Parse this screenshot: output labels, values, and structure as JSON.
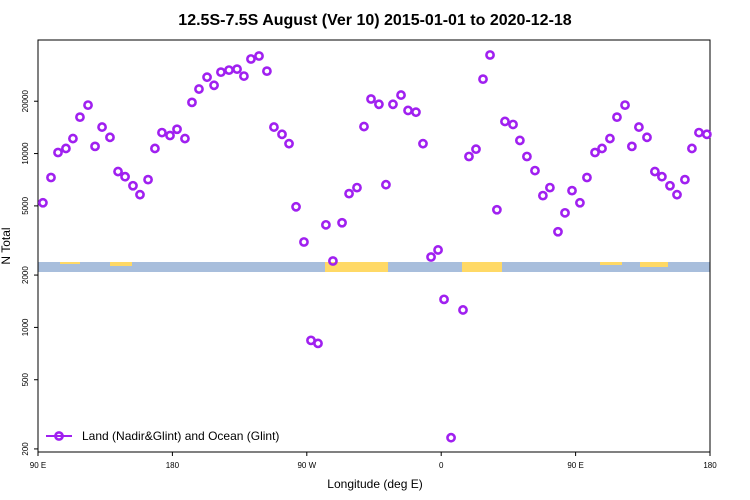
{
  "chart_data": {
    "type": "scatter",
    "title": "12.5S-7.5S August (Ver 10)   2015-01-01 to 2020-12-18",
    "x_label": "Longitude (deg E)",
    "y_label": "N Total",
    "log_y": true,
    "legend": "bottom-left",
    "xlim": [
      90,
      540
    ],
    "xticks": [
      {
        "value": 90,
        "label": "90 E"
      },
      180,
      {
        "value": 270,
        "label": "90 W"
      },
      {
        "value": 360,
        "label": "0"
      },
      {
        "value": 450,
        "label": "90 E"
      },
      {
        "value": 540,
        "label": "180"
      }
    ],
    "ylim": [
      192,
      45000
    ],
    "yticks": [
      200,
      500,
      1000,
      2000,
      5000,
      10000,
      20000
    ],
    "x": [
      93.3,
      98.7,
      103.4,
      108.7,
      113.4,
      118.1,
      123.5,
      128.2,
      132.9,
      138.2,
      143.6,
      148.3,
      153.6,
      158.3,
      163.7,
      168.3,
      173.0,
      178.4,
      183.1,
      188.4,
      193.1,
      197.8,
      203.2,
      207.9,
      212.5,
      217.9,
      223.3,
      227.9,
      232.6,
      238.0,
      243.3,
      248.0,
      253.4,
      258.1,
      262.8,
      268.1,
      272.8,
      277.5,
      282.8,
      287.5,
      293.6,
      298.3,
      303.6,
      308.3,
      313.0,
      318.3,
      323.0,
      327.7,
      333.1,
      337.8,
      343.1,
      347.8,
      353.2,
      357.9,
      361.9,
      366.6,
      374.6,
      378.6,
      383.3,
      388.0,
      392.7,
      397.3,
      402.7,
      408.1,
      412.7,
      417.4,
      422.8,
      428.1,
      432.8,
      438.2,
      442.9,
      447.6,
      452.9,
      457.6,
      463.0,
      467.7,
      473.0,
      477.7,
      483.1,
      487.7,
      492.4,
      497.8,
      503.1,
      507.8,
      513.2,
      517.9,
      523.2,
      527.9,
      532.6,
      537.9
    ],
    "series": [
      {
        "name": "Land (Nadir&Glint) and Ocean (Glint)",
        "color": "#a020f0",
        "values": [
          5210,
          7280,
          10140,
          10700,
          12200,
          16200,
          19000,
          11000,
          14200,
          12400,
          7880,
          7360,
          6530,
          5800,
          7080,
          10700,
          13200,
          12700,
          13800,
          12200,
          19700,
          23500,
          27500,
          24700,
          29400,
          30200,
          30600,
          27900,
          35000,
          36400,
          29800,
          14200,
          12900,
          11400,
          4940,
          3100,
          842,
          809,
          3890,
          2410,
          4000,
          5880,
          6370,
          14300,
          20600,
          19200,
          6620,
          19200,
          21700,
          17700,
          17300,
          11400,
          2540,
          2790,
          1450,
          232,
          1260,
          9620,
          10600,
          26800,
          36900,
          4750,
          15300,
          14700,
          11900,
          9620,
          7980,
          5730,
          6370,
          3550,
          4560,
          6120,
          5210,
          7280,
          10140,
          10700,
          12200,
          16200,
          19000,
          11000,
          14200,
          12400,
          7880,
          7360,
          6530,
          5800,
          7080,
          10700,
          13200,
          12900
        ]
      }
    ]
  }
}
